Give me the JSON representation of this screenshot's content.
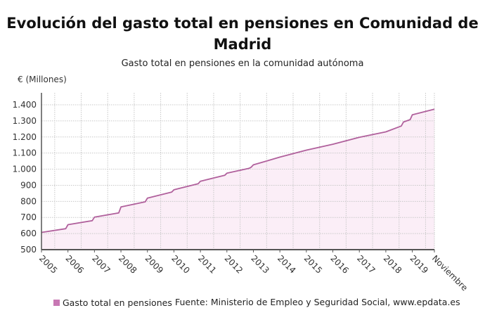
{
  "title": "Evolución del gasto total en pensiones en Comunidad de Madrid",
  "subtitle": "Gasto total en pensiones en la comunidad autónoma",
  "source": "Fuente: Ministerio de Empleo y Seguridad Social, www.epdata.es",
  "colors": {
    "line": "#b0609c",
    "fill": "#fbeef7",
    "legend": "#c878b4",
    "grid": "#c8c8c8",
    "axis": "#555555"
  },
  "chart_data": {
    "type": "area",
    "title": "Evolución del gasto total en pensiones en Comunidad de Madrid",
    "subtitle": "Gasto total en pensiones en la comunidad autónoma",
    "ylabel": "€ (Millones)",
    "xlabel": "",
    "ylim": [
      500,
      1480
    ],
    "yticks": [
      500,
      600,
      700,
      800,
      900,
      1000,
      1100,
      1200,
      1300,
      1400
    ],
    "ytick_labels": [
      "500",
      "600",
      "700",
      "800",
      "900",
      "1.000",
      "1.100",
      "1.200",
      "1.300",
      "1.400"
    ],
    "xlim": [
      "2005-01",
      "2019-11"
    ],
    "xtick_labels": [
      "2005",
      "2006",
      "2007",
      "2008",
      "2009",
      "2010",
      "2011",
      "2012",
      "2013",
      "2014",
      "2015",
      "2016",
      "2017",
      "2018",
      "2019",
      "Noviembre"
    ],
    "xtick_dates": [
      "2005-01",
      "2006-01",
      "2007-01",
      "2008-01",
      "2009-01",
      "2010-01",
      "2011-01",
      "2012-01",
      "2013-01",
      "2014-01",
      "2015-01",
      "2016-01",
      "2017-01",
      "2018-01",
      "2019-01",
      "2019-11"
    ],
    "grid": true,
    "legend_position": "bottom-left",
    "series": [
      {
        "name": "Gasto total en pensiones",
        "points": [
          [
            "2005-01",
            607
          ],
          [
            "2005-12",
            630
          ],
          [
            "2006-01",
            655
          ],
          [
            "2006-12",
            680
          ],
          [
            "2007-01",
            702
          ],
          [
            "2007-12",
            728
          ],
          [
            "2008-01",
            765
          ],
          [
            "2008-12",
            797
          ],
          [
            "2009-01",
            820
          ],
          [
            "2009-12",
            858
          ],
          [
            "2010-01",
            872
          ],
          [
            "2010-12",
            910
          ],
          [
            "2011-01",
            925
          ],
          [
            "2011-12",
            962
          ],
          [
            "2012-01",
            975
          ],
          [
            "2012-11",
            1005
          ],
          [
            "2012-12",
            1012
          ],
          [
            "2013-01",
            1027
          ],
          [
            "2014-01",
            1075
          ],
          [
            "2015-01",
            1118
          ],
          [
            "2016-01",
            1155
          ],
          [
            "2017-01",
            1198
          ],
          [
            "2018-01",
            1232
          ],
          [
            "2018-08",
            1268
          ],
          [
            "2018-09",
            1293
          ],
          [
            "2018-12",
            1308
          ],
          [
            "2019-01",
            1338
          ],
          [
            "2019-11",
            1373
          ]
        ]
      }
    ]
  }
}
